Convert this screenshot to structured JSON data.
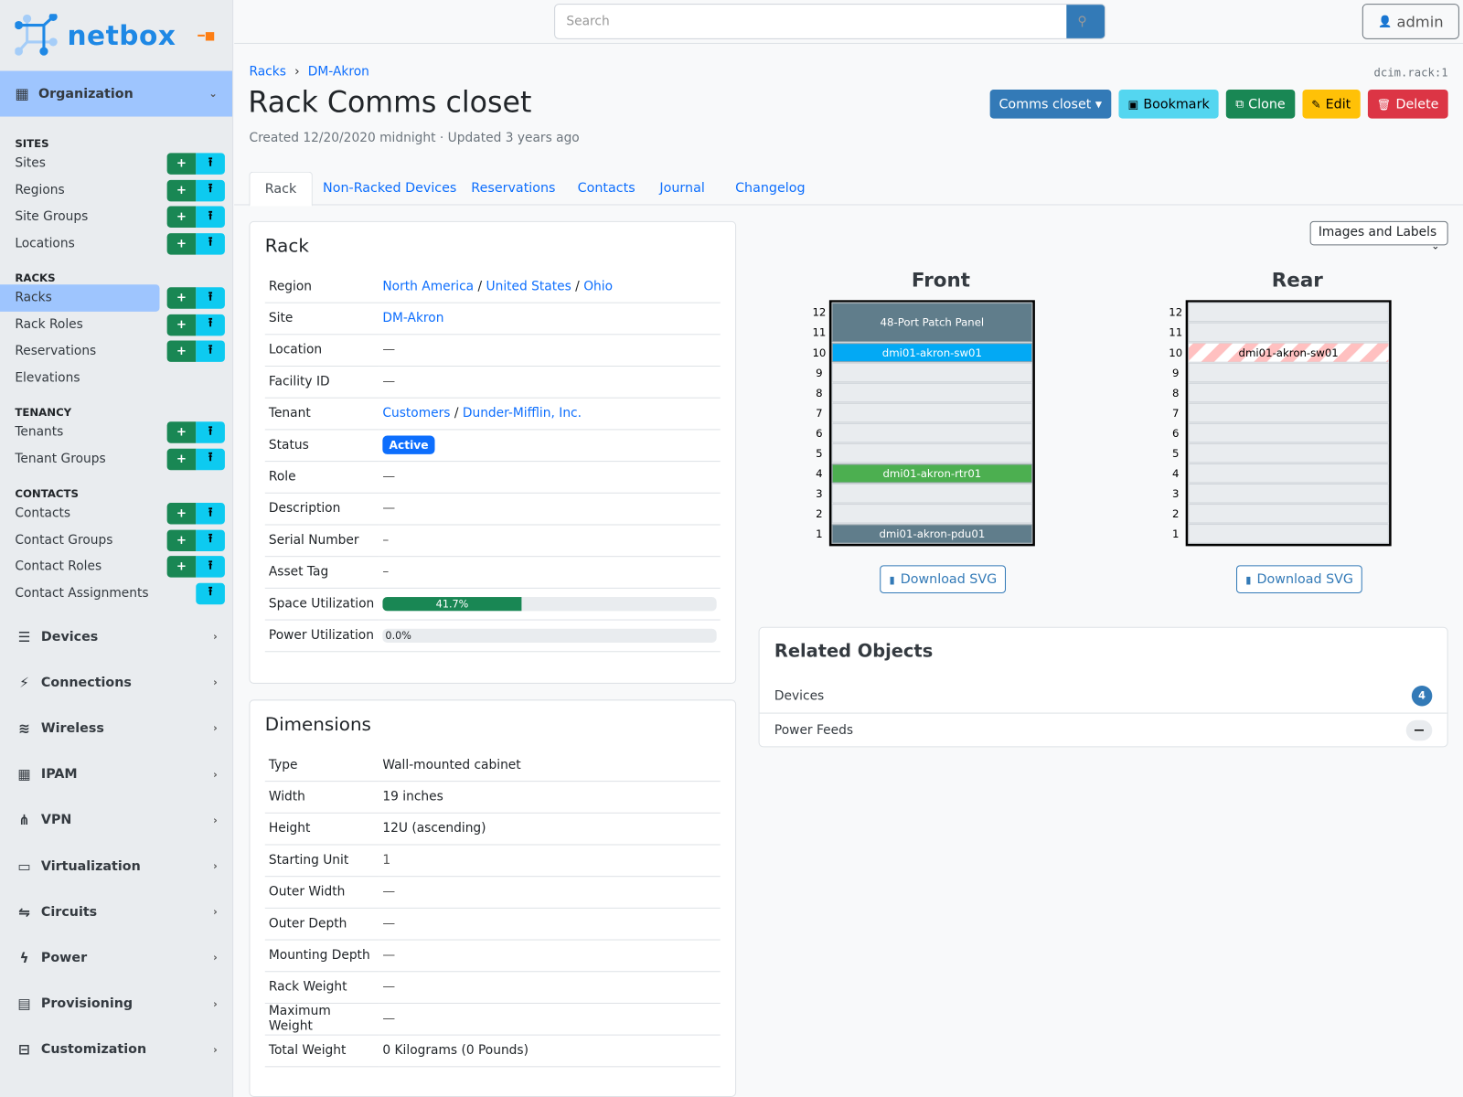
{
  "brand": {
    "name": "netbox",
    "accent": "#1e88e5"
  },
  "sidebar": {
    "org_label": "Organization",
    "sections": [
      {
        "title": "SITES",
        "items": [
          {
            "label": "Sites",
            "add": true,
            "import": true
          },
          {
            "label": "Regions",
            "add": true,
            "import": true
          },
          {
            "label": "Site Groups",
            "add": true,
            "import": true
          },
          {
            "label": "Locations",
            "add": true,
            "import": true
          }
        ]
      },
      {
        "title": "RACKS",
        "items": [
          {
            "label": "Racks",
            "add": true,
            "import": true,
            "active": true
          },
          {
            "label": "Rack Roles",
            "add": true,
            "import": true
          },
          {
            "label": "Reservations",
            "add": true,
            "import": true
          },
          {
            "label": "Elevations"
          }
        ]
      },
      {
        "title": "TENANCY",
        "items": [
          {
            "label": "Tenants",
            "add": true,
            "import": true
          },
          {
            "label": "Tenant Groups",
            "add": true,
            "import": true
          }
        ]
      },
      {
        "title": "CONTACTS",
        "items": [
          {
            "label": "Contacts",
            "add": true,
            "import": true
          },
          {
            "label": "Contact Groups",
            "add": true,
            "import": true
          },
          {
            "label": "Contact Roles",
            "add": true,
            "import": true
          },
          {
            "label": "Contact Assignments",
            "import": true
          }
        ]
      }
    ],
    "menus": [
      {
        "label": "Devices",
        "icon": "server-icon",
        "glyph": "☰"
      },
      {
        "label": "Connections",
        "icon": "plug-icon",
        "glyph": "⚡"
      },
      {
        "label": "Wireless",
        "icon": "wifi-icon",
        "glyph": "≋"
      },
      {
        "label": "IPAM",
        "icon": "ipam-icon",
        "glyph": "▦"
      },
      {
        "label": "VPN",
        "icon": "vpn-icon",
        "glyph": "⋔"
      },
      {
        "label": "Virtualization",
        "icon": "monitor-icon",
        "glyph": "▭"
      },
      {
        "label": "Circuits",
        "icon": "circuits-icon",
        "glyph": "⇋"
      },
      {
        "label": "Power",
        "icon": "lightning-icon",
        "glyph": "ϟ"
      },
      {
        "label": "Provisioning",
        "icon": "file-icon",
        "glyph": "▤"
      },
      {
        "label": "Customization",
        "icon": "toolbox-icon",
        "glyph": "⊟"
      }
    ]
  },
  "header": {
    "search_placeholder": "Search",
    "user": "admin"
  },
  "breadcrumb": [
    {
      "label": "Racks"
    },
    {
      "label": "DM-Akron"
    }
  ],
  "object_id": "dcim.rack:1",
  "title": "Rack Comms closet",
  "meta": "Created 12/20/2020 midnight · Updated 3 years ago",
  "actions": [
    {
      "label": "Comms closet ▾",
      "bg": "#337ab7",
      "fg": "#fff",
      "icon": ""
    },
    {
      "label": "Bookmark",
      "bg": "#54d6f0",
      "fg": "#000",
      "icon": "▣"
    },
    {
      "label": "Clone",
      "bg": "#198754",
      "fg": "#fff",
      "icon": "⧉"
    },
    {
      "label": "Edit",
      "bg": "#ffc107",
      "fg": "#000",
      "icon": "✎"
    },
    {
      "label": "Delete",
      "bg": "#dc3545",
      "fg": "#fff",
      "icon": "🗑"
    }
  ],
  "tabs": [
    "Rack",
    "Non-Racked Devices",
    "Reservations",
    "Contacts",
    "Journal",
    "Changelog"
  ],
  "rack_card": {
    "title": "Rack",
    "rows": [
      {
        "k": "Region",
        "links": [
          "North America",
          "United States",
          "Ohio"
        ]
      },
      {
        "k": "Site",
        "links": [
          "DM-Akron"
        ]
      },
      {
        "k": "Location",
        "v": "—"
      },
      {
        "k": "Facility ID",
        "v": "—"
      },
      {
        "k": "Tenant",
        "links": [
          "Customers",
          "Dunder-Mifflin, Inc."
        ]
      },
      {
        "k": "Status",
        "badge": "Active"
      },
      {
        "k": "Role",
        "v": "—"
      },
      {
        "k": "Description",
        "v": "—"
      },
      {
        "k": "Serial Number",
        "v": "–"
      },
      {
        "k": "Asset Tag",
        "v": "–"
      },
      {
        "k": "Space Utilization",
        "progress": 41.7,
        "label": "41.7%"
      },
      {
        "k": "Power Utilization",
        "progress": 0,
        "label": "0.0%"
      }
    ]
  },
  "dimensions": {
    "title": "Dimensions",
    "rows": [
      {
        "k": "Type",
        "v": "Wall-mounted cabinet"
      },
      {
        "k": "Width",
        "v": "19 inches"
      },
      {
        "k": "Height",
        "v": "12U (ascending)"
      },
      {
        "k": "Starting Unit",
        "v": "1"
      },
      {
        "k": "Outer Width",
        "v": "—"
      },
      {
        "k": "Outer Depth",
        "v": "—"
      },
      {
        "k": "Mounting Depth",
        "v": "—"
      },
      {
        "k": "Rack Weight",
        "v": "—"
      },
      {
        "k": "Maximum Weight",
        "v": "—"
      },
      {
        "k": "Total Weight",
        "v": "0 Kilograms (0 Pounds)"
      }
    ]
  },
  "elevation": {
    "view_select": "Images and Labels",
    "units": 12,
    "download_label": "Download SVG",
    "front": {
      "label": "Front",
      "devices": [
        {
          "name": "48-Port Patch Panel",
          "u": 11,
          "h": 2,
          "color": "#607d8b"
        },
        {
          "name": "dmi01-akron-sw01",
          "u": 10,
          "h": 1,
          "color": "#03a9f4"
        },
        {
          "name": "dmi01-akron-rtr01",
          "u": 4,
          "h": 1,
          "color": "#4caf50"
        },
        {
          "name": "dmi01-akron-pdu01",
          "u": 1,
          "h": 1,
          "color": "#607d8b"
        }
      ]
    },
    "rear": {
      "label": "Rear",
      "devices": [
        {
          "name": "dmi01-akron-sw01",
          "u": 10,
          "h": 1,
          "color": "striped"
        }
      ]
    }
  },
  "related": {
    "title": "Related Objects",
    "rows": [
      {
        "label": "Devices",
        "count": "4"
      },
      {
        "label": "Power Feeds",
        "count": "—"
      }
    ]
  }
}
